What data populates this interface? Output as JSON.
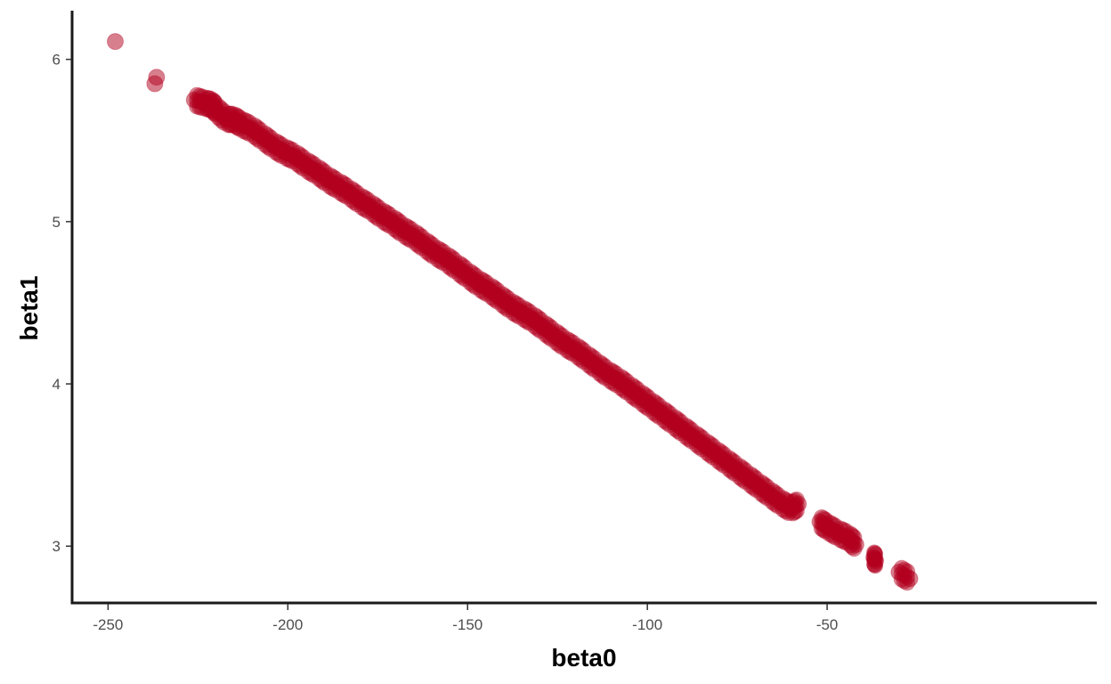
{
  "chart_data": {
    "type": "scatter",
    "title": "",
    "xlabel": "beta0",
    "ylabel": "beta1",
    "xlim": [
      -260,
      25
    ],
    "ylim": [
      2.65,
      6.3
    ],
    "x_ticks": [
      {
        "value": -250,
        "label": "-250"
      },
      {
        "value": -200,
        "label": "-200"
      },
      {
        "value": -150,
        "label": "-150"
      },
      {
        "value": -100,
        "label": "-100"
      },
      {
        "value": -50,
        "label": "-50"
      }
    ],
    "y_ticks": [
      {
        "value": 3,
        "label": "3"
      },
      {
        "value": 4,
        "label": "4"
      },
      {
        "value": 5,
        "label": "5"
      },
      {
        "value": 6,
        "label": "6"
      }
    ],
    "grid": false,
    "point_color": "#b2001e",
    "point_opacity": 0.5,
    "series": [
      {
        "points": [
          [
            -248.0,
            6.11
          ],
          [
            -237.0,
            5.85
          ],
          [
            -236.5,
            5.89
          ],
          [
            -226.0,
            5.75
          ],
          [
            -223.0,
            5.73
          ],
          [
            -221.0,
            5.72
          ],
          [
            -220.0,
            5.69
          ],
          [
            -217.0,
            5.63
          ],
          [
            -215.0,
            5.63
          ],
          [
            -213.0,
            5.6
          ],
          [
            -210.0,
            5.57
          ],
          [
            -207.0,
            5.52
          ],
          [
            -204.0,
            5.47
          ],
          [
            -201.0,
            5.43
          ],
          [
            -198.0,
            5.4
          ],
          [
            -195.0,
            5.35
          ],
          [
            -192.0,
            5.31
          ],
          [
            -189.0,
            5.26
          ],
          [
            -186.0,
            5.22
          ],
          [
            -183.0,
            5.18
          ],
          [
            -180.0,
            5.13
          ],
          [
            -177.0,
            5.09
          ],
          [
            -174.0,
            5.04
          ],
          [
            -171.0,
            5.0
          ],
          [
            -168.0,
            4.95
          ],
          [
            -165.0,
            4.91
          ],
          [
            -162.0,
            4.86
          ],
          [
            -159.0,
            4.81
          ],
          [
            -156.0,
            4.77
          ],
          [
            -153.0,
            4.72
          ],
          [
            -150.0,
            4.67
          ],
          [
            -147.0,
            4.62
          ],
          [
            -144.0,
            4.58
          ],
          [
            -141.0,
            4.53
          ],
          [
            -138.0,
            4.48
          ],
          [
            -135.0,
            4.44
          ],
          [
            -132.0,
            4.4
          ],
          [
            -129.0,
            4.35
          ],
          [
            -126.0,
            4.3
          ],
          [
            -123.0,
            4.25
          ],
          [
            -120.0,
            4.21
          ],
          [
            -117.0,
            4.16
          ],
          [
            -114.0,
            4.11
          ],
          [
            -111.0,
            4.06
          ],
          [
            -108.0,
            4.02
          ],
          [
            -105.0,
            3.97
          ],
          [
            -102.0,
            3.92
          ],
          [
            -99.0,
            3.87
          ],
          [
            -96.0,
            3.82
          ],
          [
            -93.0,
            3.77
          ],
          [
            -90.0,
            3.72
          ],
          [
            -87.0,
            3.67
          ],
          [
            -84.0,
            3.62
          ],
          [
            -81.0,
            3.57
          ],
          [
            -78.0,
            3.52
          ],
          [
            -75.0,
            3.47
          ],
          [
            -72.0,
            3.42
          ],
          [
            -69.0,
            3.37
          ],
          [
            -66.0,
            3.32
          ],
          [
            -63.0,
            3.27
          ],
          [
            -60.0,
            3.23
          ],
          [
            -58.0,
            3.26
          ],
          [
            -52.0,
            3.15
          ],
          [
            -50.0,
            3.12
          ],
          [
            -47.0,
            3.08
          ],
          [
            -44.0,
            3.05
          ],
          [
            -42.0,
            3.01
          ],
          [
            -37.0,
            2.93
          ],
          [
            -36.5,
            2.91
          ],
          [
            -30.0,
            2.84
          ],
          [
            -27.0,
            2.8
          ]
        ]
      }
    ]
  }
}
